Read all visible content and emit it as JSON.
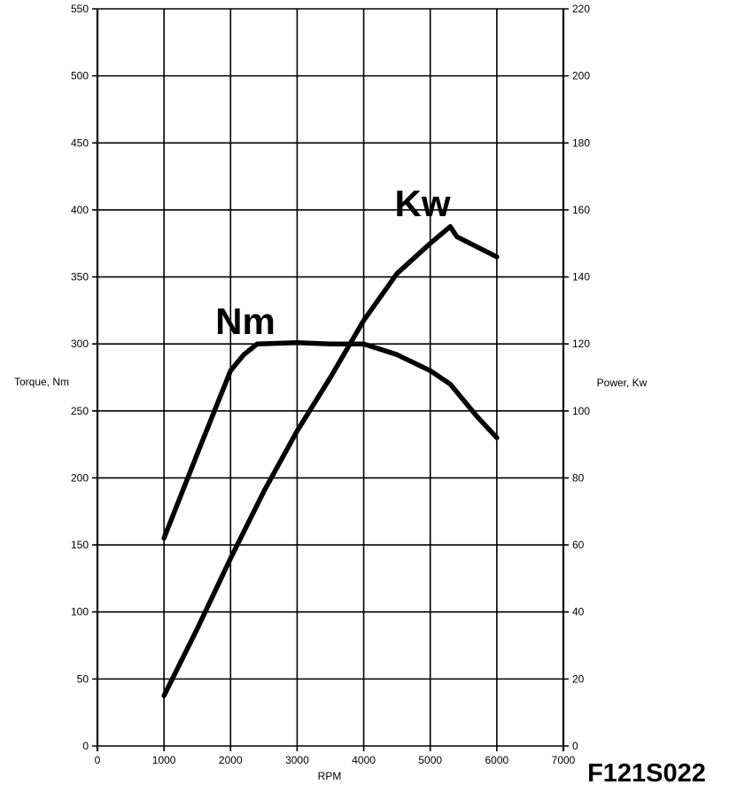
{
  "chart_data": {
    "type": "line",
    "title": "",
    "code": "F121S022",
    "xlabel": "RPM",
    "ylabel_left": "Torque, Nm",
    "ylabel_right": "Power, Kw",
    "xlim": [
      0,
      7000
    ],
    "ylim_left": [
      0,
      550
    ],
    "ylim_right": [
      0,
      220
    ],
    "x_ticks": [
      0,
      1000,
      2000,
      3000,
      4000,
      5000,
      6000,
      7000
    ],
    "y_ticks_left": [
      0,
      50,
      100,
      150,
      200,
      250,
      300,
      350,
      400,
      450,
      500,
      550
    ],
    "y_ticks_right": [
      0,
      20,
      40,
      60,
      80,
      100,
      120,
      140,
      160,
      180,
      200,
      220
    ],
    "grid": true,
    "series": [
      {
        "name": "Nm",
        "axis": "left",
        "x": [
          1000,
          1500,
          2000,
          2200,
          2400,
          3000,
          3500,
          4000,
          4500,
          5000,
          5300,
          5700,
          6000
        ],
        "y": [
          155,
          218,
          280,
          292,
          300,
          301,
          300,
          300,
          292,
          280,
          270,
          246,
          230
        ]
      },
      {
        "name": "Kw",
        "axis": "right",
        "x": [
          1000,
          1500,
          2000,
          2500,
          3000,
          3500,
          4000,
          4500,
          5000,
          5300,
          5400,
          6000
        ],
        "y": [
          15,
          35,
          56,
          76,
          94,
          110,
          127,
          141,
          150,
          155,
          152,
          146
        ]
      }
    ]
  }
}
